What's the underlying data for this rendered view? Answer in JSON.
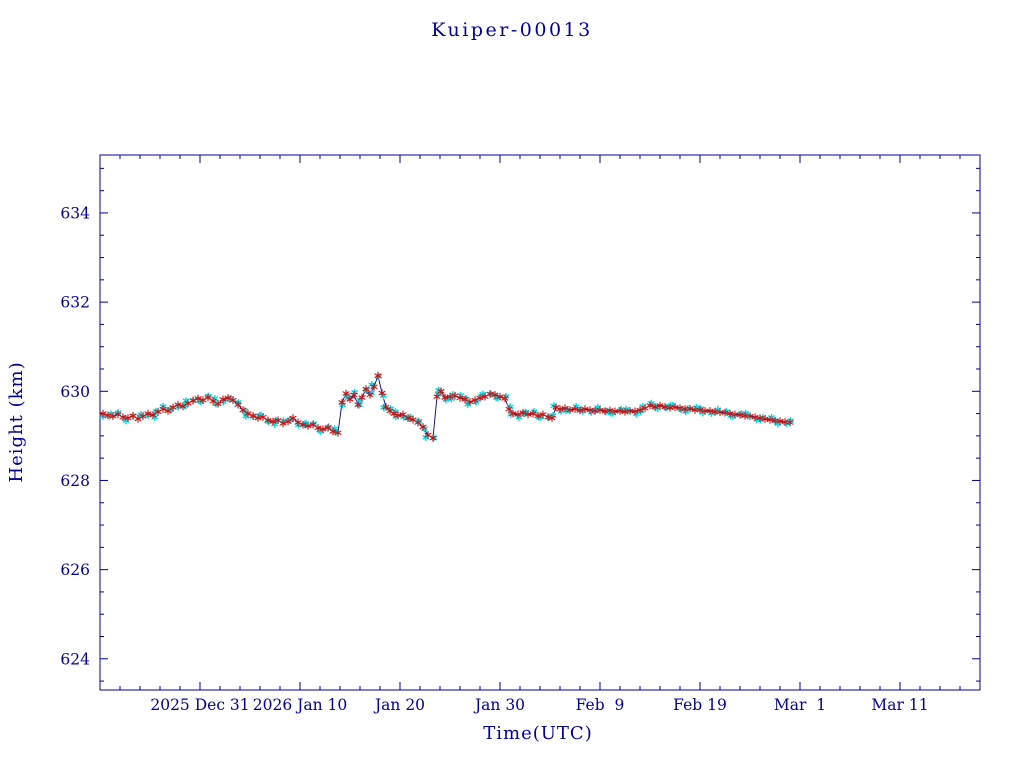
{
  "chart_data": {
    "type": "line",
    "title": "Kuiper-00013",
    "xlabel": "Time(UTC)",
    "ylabel": "Height (km)",
    "legend": "none",
    "grid": false,
    "x_axis": {
      "unit": "days (t=0 corresponds to 2025 Dec 21)",
      "range": [
        0,
        88
      ],
      "major_ticks": [
        {
          "t": 10,
          "label": "2025 Dec 31"
        },
        {
          "t": 20,
          "label": "2026 Jan 10"
        },
        {
          "t": 30,
          "label": "Jan 20"
        },
        {
          "t": 40,
          "label": "Jan 30"
        },
        {
          "t": 50,
          "label": "Feb  9"
        },
        {
          "t": 60,
          "label": "Feb 19"
        },
        {
          "t": 70,
          "label": "Mar  1"
        },
        {
          "t": 80,
          "label": "Mar 11"
        }
      ],
      "minor_tick_step": 2
    },
    "y_axis": {
      "range": [
        623.3,
        635.3
      ],
      "major_ticks": [
        624,
        626,
        628,
        630,
        632,
        634
      ],
      "minor_tick_step": 0.5
    },
    "colors": {
      "frame": "#000097",
      "text": "#000097",
      "line": "#000080",
      "marker_primary": "#cc1111",
      "marker_secondary": "#00dde8"
    },
    "series": [
      {
        "name": "tracking-markers-cyan",
        "marker": "star",
        "color_key": "marker_secondary"
      },
      {
        "name": "height-markers-red",
        "marker": "asterisk",
        "color_key": "marker_primary"
      }
    ],
    "points": [
      [
        0.3,
        629.5
      ],
      [
        0.8,
        629.46
      ],
      [
        1.3,
        629.44
      ],
      [
        1.8,
        629.48
      ],
      [
        2.3,
        629.42
      ],
      [
        2.8,
        629.4
      ],
      [
        3.3,
        629.45
      ],
      [
        3.8,
        629.38
      ],
      [
        4.3,
        629.44
      ],
      [
        4.8,
        629.5
      ],
      [
        5.3,
        629.47
      ],
      [
        5.8,
        629.54
      ],
      [
        6.3,
        629.6
      ],
      [
        6.8,
        629.56
      ],
      [
        7.3,
        629.64
      ],
      [
        7.8,
        629.7
      ],
      [
        8.3,
        629.66
      ],
      [
        8.8,
        629.73
      ],
      [
        9.3,
        629.79
      ],
      [
        9.8,
        629.84
      ],
      [
        10.3,
        629.8
      ],
      [
        10.8,
        629.86
      ],
      [
        11.3,
        629.78
      ],
      [
        11.8,
        629.72
      ],
      [
        12.3,
        629.82
      ],
      [
        12.8,
        629.85
      ],
      [
        13.3,
        629.8
      ],
      [
        13.8,
        629.7
      ],
      [
        14.3,
        629.58
      ],
      [
        14.8,
        629.5
      ],
      [
        15.3,
        629.45
      ],
      [
        15.8,
        629.4
      ],
      [
        16.3,
        629.42
      ],
      [
        16.8,
        629.35
      ],
      [
        17.3,
        629.32
      ],
      [
        17.8,
        629.35
      ],
      [
        18.3,
        629.28
      ],
      [
        18.8,
        629.32
      ],
      [
        19.3,
        629.4
      ],
      [
        19.8,
        629.3
      ],
      [
        20.3,
        629.25
      ],
      [
        20.8,
        629.22
      ],
      [
        21.3,
        629.25
      ],
      [
        21.8,
        629.18
      ],
      [
        22.3,
        629.15
      ],
      [
        22.8,
        629.18
      ],
      [
        23.3,
        629.1
      ],
      [
        23.8,
        629.07
      ],
      [
        24.2,
        629.75
      ],
      [
        24.6,
        629.95
      ],
      [
        25.0,
        629.82
      ],
      [
        25.4,
        629.92
      ],
      [
        25.8,
        629.7
      ],
      [
        26.2,
        629.86
      ],
      [
        26.6,
        630.05
      ],
      [
        27.0,
        629.92
      ],
      [
        27.4,
        630.1
      ],
      [
        27.8,
        630.35
      ],
      [
        28.2,
        629.96
      ],
      [
        28.6,
        629.65
      ],
      [
        29.0,
        629.56
      ],
      [
        29.4,
        629.5
      ],
      [
        29.8,
        629.46
      ],
      [
        30.3,
        629.48
      ],
      [
        30.8,
        629.4
      ],
      [
        31.3,
        629.36
      ],
      [
        31.8,
        629.3
      ],
      [
        32.3,
        629.2
      ],
      [
        32.8,
        629.02
      ],
      [
        33.3,
        628.95
      ],
      [
        33.7,
        629.88
      ],
      [
        34.1,
        630.0
      ],
      [
        34.5,
        629.86
      ],
      [
        35.0,
        629.88
      ],
      [
        35.5,
        629.9
      ],
      [
        36.0,
        629.85
      ],
      [
        36.5,
        629.82
      ],
      [
        37.0,
        629.76
      ],
      [
        37.5,
        629.8
      ],
      [
        38.0,
        629.85
      ],
      [
        38.5,
        629.88
      ],
      [
        39.0,
        629.94
      ],
      [
        39.5,
        629.92
      ],
      [
        40.0,
        629.88
      ],
      [
        40.5,
        629.84
      ],
      [
        40.9,
        629.6
      ],
      [
        41.3,
        629.5
      ],
      [
        41.8,
        629.48
      ],
      [
        42.3,
        629.52
      ],
      [
        42.8,
        629.48
      ],
      [
        43.3,
        629.5
      ],
      [
        43.8,
        629.45
      ],
      [
        44.3,
        629.48
      ],
      [
        44.8,
        629.42
      ],
      [
        45.2,
        629.4
      ],
      [
        45.6,
        629.64
      ],
      [
        46.0,
        629.6
      ],
      [
        46.5,
        629.62
      ],
      [
        47.0,
        629.58
      ],
      [
        47.5,
        629.6
      ],
      [
        48.0,
        629.57
      ],
      [
        48.5,
        629.6
      ],
      [
        49.0,
        629.58
      ],
      [
        49.5,
        629.56
      ],
      [
        50.0,
        629.58
      ],
      [
        50.5,
        629.55
      ],
      [
        51.0,
        629.57
      ],
      [
        51.5,
        629.55
      ],
      [
        52.0,
        629.56
      ],
      [
        52.5,
        629.54
      ],
      [
        53.0,
        629.56
      ],
      [
        53.5,
        629.55
      ],
      [
        54.0,
        629.58
      ],
      [
        54.5,
        629.62
      ],
      [
        55.0,
        629.68
      ],
      [
        55.5,
        629.65
      ],
      [
        56.0,
        629.68
      ],
      [
        56.5,
        629.65
      ],
      [
        57.0,
        629.63
      ],
      [
        57.5,
        629.64
      ],
      [
        58.0,
        629.62
      ],
      [
        58.5,
        629.6
      ],
      [
        59.0,
        629.61
      ],
      [
        59.5,
        629.58
      ],
      [
        60.0,
        629.58
      ],
      [
        60.5,
        629.56
      ],
      [
        61.0,
        629.56
      ],
      [
        61.5,
        629.54
      ],
      [
        62.0,
        629.53
      ],
      [
        62.5,
        629.52
      ],
      [
        63.0,
        629.5
      ],
      [
        63.5,
        629.48
      ],
      [
        64.0,
        629.47
      ],
      [
        64.5,
        629.45
      ],
      [
        65.0,
        629.44
      ],
      [
        65.5,
        629.42
      ],
      [
        66.0,
        629.4
      ],
      [
        66.5,
        629.38
      ],
      [
        67.0,
        629.36
      ],
      [
        67.5,
        629.34
      ],
      [
        68.0,
        629.33
      ],
      [
        68.5,
        629.31
      ],
      [
        69.0,
        629.3
      ]
    ]
  }
}
